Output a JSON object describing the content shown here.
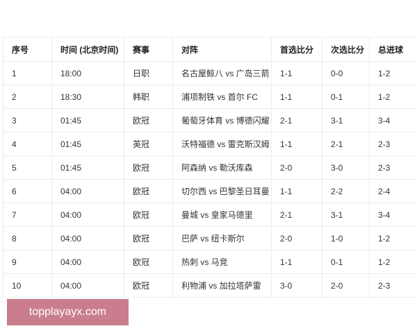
{
  "table": {
    "headers": [
      "序号",
      "时间 (北京时间)",
      "赛事",
      "对阵",
      "首选比分",
      "次选比分",
      "总进球"
    ],
    "rows": [
      [
        "1",
        "18:00",
        "日职",
        "名古屋鲸八 vs 广岛三箭",
        "1-1",
        "0-0",
        "1-2"
      ],
      [
        "2",
        "18:30",
        "韩职",
        "浦项制铁 vs 首尔 FC",
        "1-1",
        "0-1",
        "1-2"
      ],
      [
        "3",
        "01:45",
        "欧冠",
        "葡萄牙体育 vs 博德闪耀",
        "2-1",
        "3-1",
        "3-4"
      ],
      [
        "4",
        "01:45",
        "英冠",
        "沃特福德 vs 雷克斯汉姆",
        "1-1",
        "2-1",
        "2-3"
      ],
      [
        "5",
        "01:45",
        "欧冠",
        "阿森纳 vs 勒沃库森",
        "2-0",
        "3-0",
        "2-3"
      ],
      [
        "6",
        "04:00",
        "欧冠",
        "切尔西 vs 巴黎圣日耳曼",
        "1-1",
        "2-2",
        "2-4"
      ],
      [
        "7",
        "04:00",
        "欧冠",
        "曼城 vs 皇家马德里",
        "2-1",
        "3-1",
        "3-4"
      ],
      [
        "8",
        "04:00",
        "欧冠",
        "巴萨 vs 纽卡斯尔",
        "2-0",
        "1-0",
        "1-2"
      ],
      [
        "9",
        "04:00",
        "欧冠",
        "热刺 vs 马竞",
        "1-1",
        "0-1",
        "1-2"
      ],
      [
        "10",
        "04:00",
        "欧冠",
        "利物浦 vs 加拉塔萨雷",
        "3-0",
        "2-0",
        "2-3"
      ]
    ]
  },
  "watermark": {
    "text": "topplayayx.com",
    "color": "#c97d8d"
  }
}
